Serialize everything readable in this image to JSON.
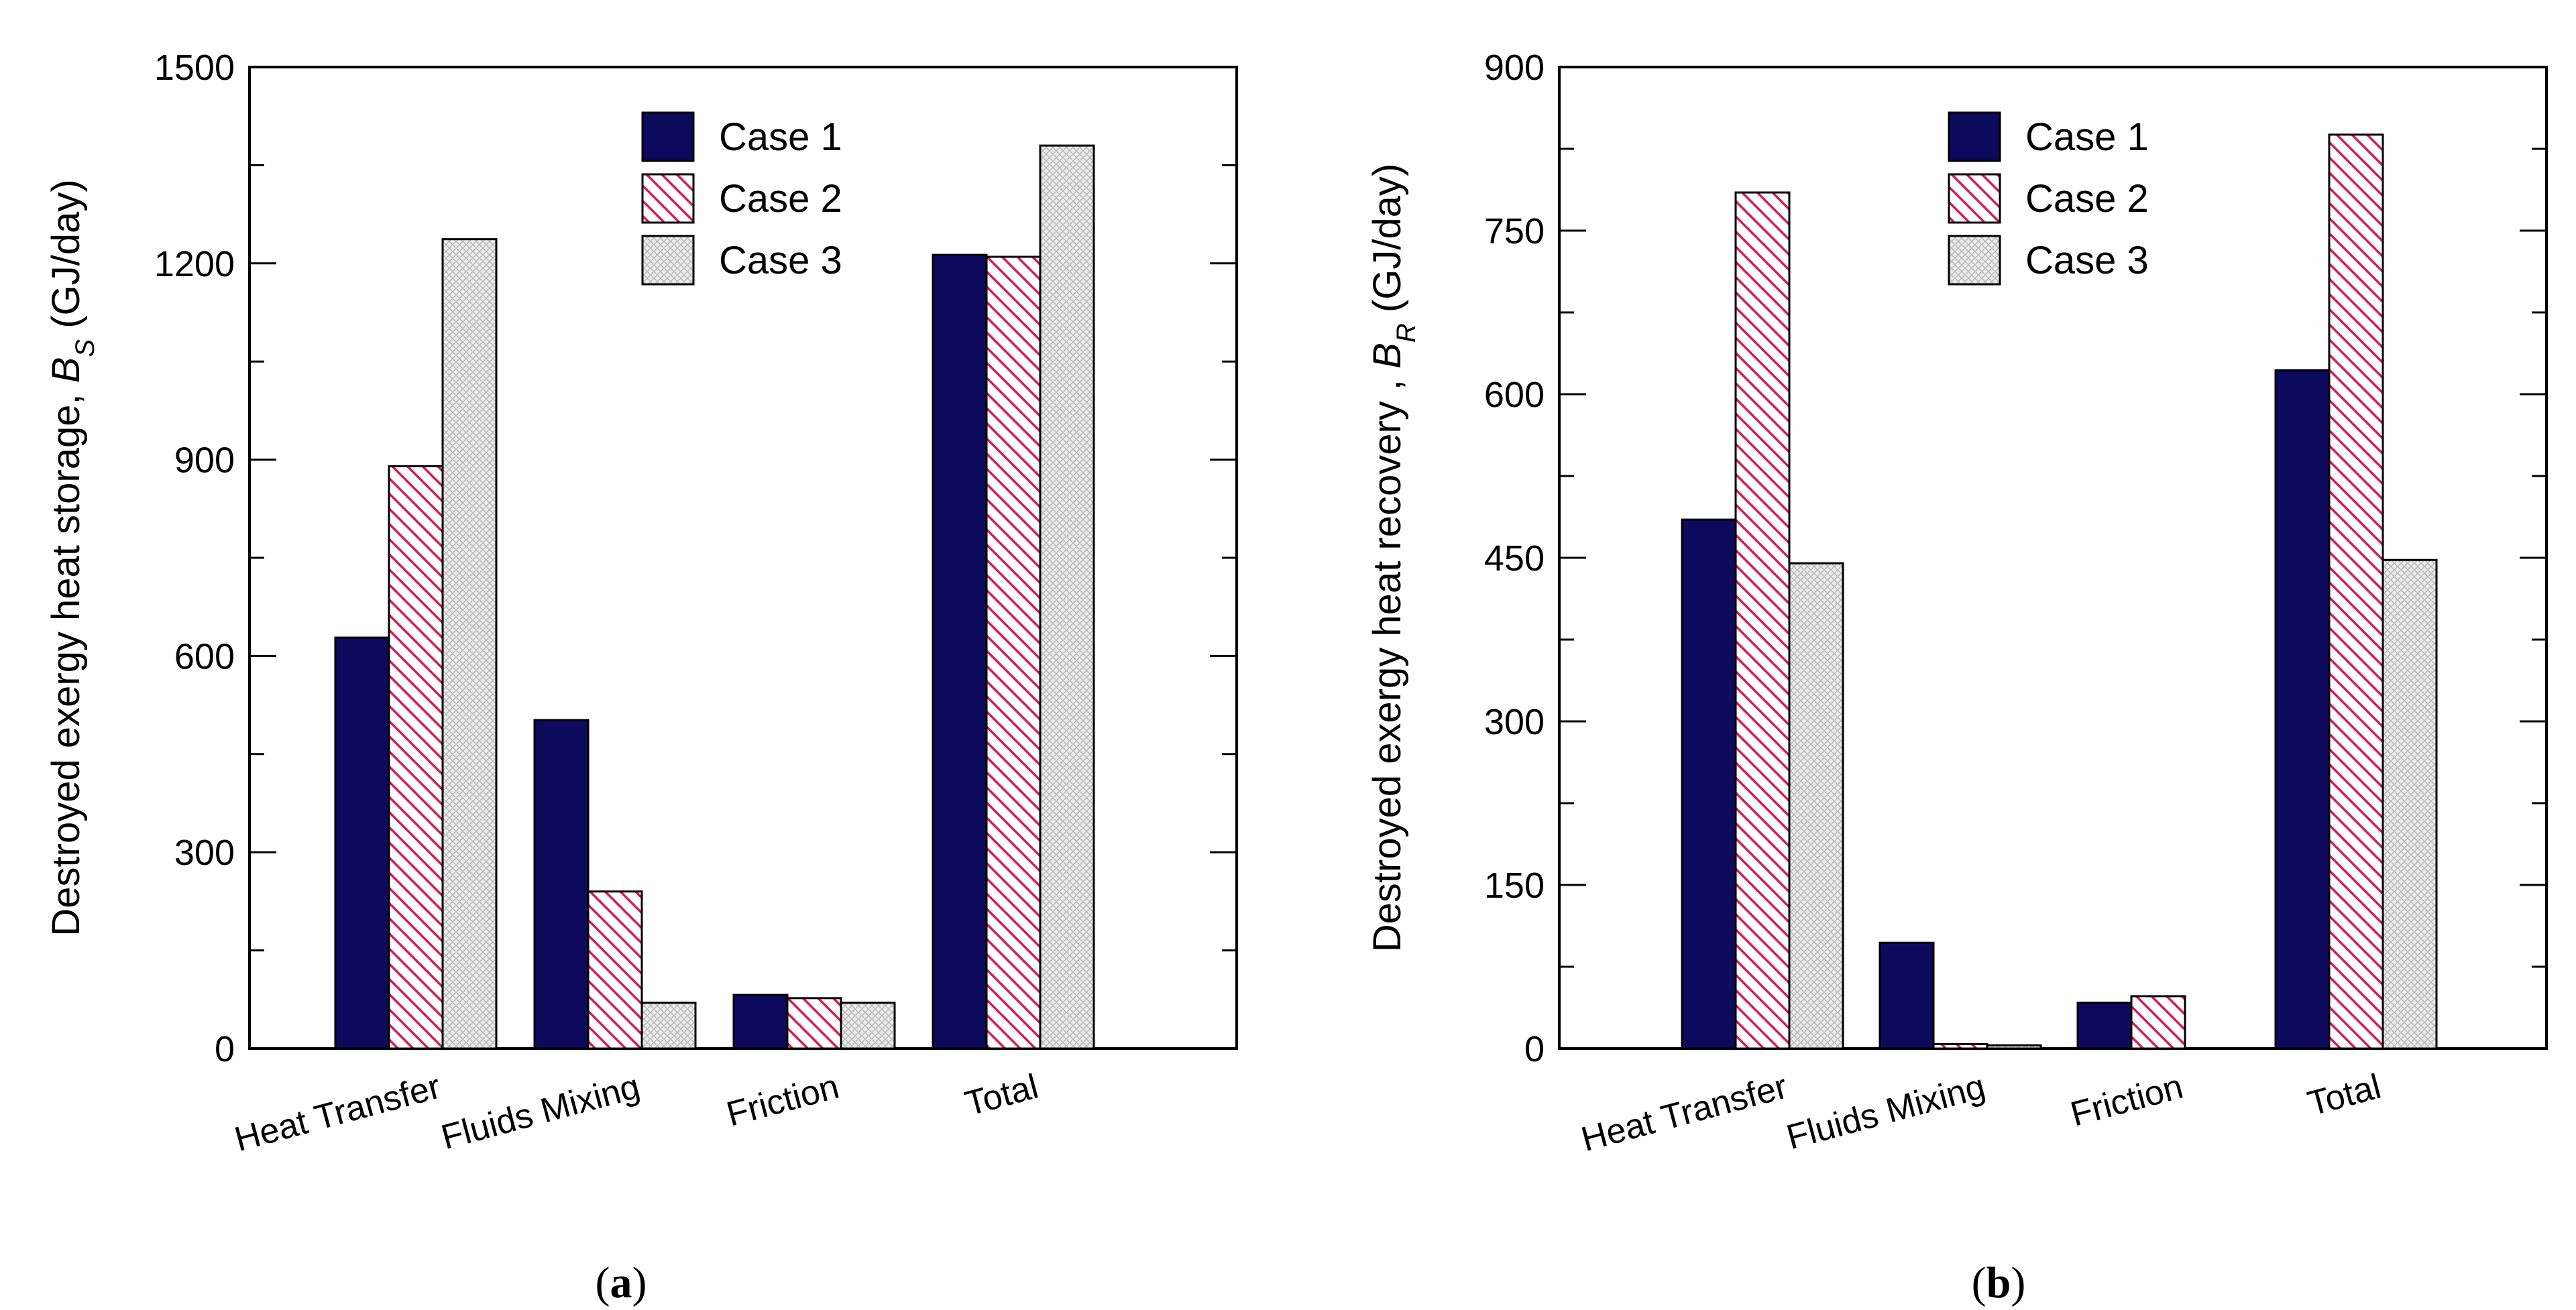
{
  "chart_data": [
    {
      "type": "bar",
      "panel_label": {
        "open": "(",
        "letter": "a",
        "close": ")"
      },
      "ylabel": {
        "prefix": "Destroyed exergy heat storage, ",
        "var": "B",
        "sub": "S",
        "suffix": " (GJ/day)"
      },
      "ylim": [
        0,
        1500
      ],
      "yticks": [
        0,
        300,
        600,
        900,
        1200,
        1500
      ],
      "yminor_step": 150,
      "categories": [
        "Heat Transfer",
        "Fluids Mixing",
        "Friction",
        "Total"
      ],
      "series": [
        {
          "name": "Case 1",
          "values": [
            628,
            502,
            82,
            1213
          ]
        },
        {
          "name": "Case 2",
          "values": [
            890,
            240,
            77,
            1210
          ]
        },
        {
          "name": "Case 3",
          "values": [
            1237,
            70,
            70,
            1380
          ]
        }
      ],
      "legend_position": "top-right"
    },
    {
      "type": "bar",
      "panel_label": {
        "open": "(",
        "letter": "b",
        "close": ")"
      },
      "ylabel": {
        "prefix": "Destroyed exergy heat recovery , ",
        "var": "B",
        "sub": "R",
        "suffix": " (GJ/day)"
      },
      "ylim": [
        0,
        900
      ],
      "yticks": [
        0,
        150,
        300,
        450,
        600,
        750,
        900
      ],
      "yminor_step": 75,
      "categories": [
        "Heat Transfer",
        "Fluids Mixing",
        "Friction",
        "Total"
      ],
      "series": [
        {
          "name": "Case 1",
          "values": [
            485,
            97,
            42,
            622
          ]
        },
        {
          "name": "Case 2",
          "values": [
            785,
            4,
            48,
            838
          ]
        },
        {
          "name": "Case 3",
          "values": [
            445,
            3,
            0,
            448
          ]
        }
      ],
      "legend_position": "top-right"
    }
  ],
  "series_styles": [
    {
      "fill": "#0d0a5e",
      "pattern": "solid"
    },
    {
      "fill": "#ffffff",
      "stroke_pattern": "#d8195a",
      "pattern": "diagonal-hatch"
    },
    {
      "fill": "#e4e4e4",
      "pattern": "crosshatch"
    }
  ]
}
